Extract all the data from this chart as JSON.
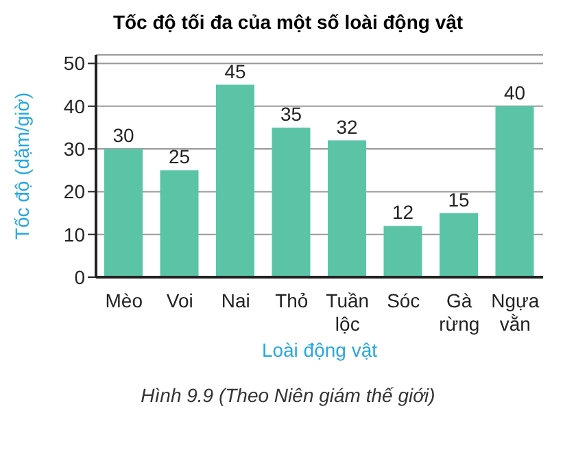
{
  "chart_data": {
    "type": "bar",
    "title": "Tốc độ tối đa của một số loài động vật",
    "xlabel": "Loài động vật",
    "ylabel": "Tốc độ (dặm/giờ)",
    "categories": [
      "Mèo",
      "Voi",
      "Nai",
      "Thỏ",
      "Tuần lộc",
      "Sóc",
      "Gà rừng",
      "Ngựa vằn"
    ],
    "values": [
      30,
      25,
      45,
      35,
      32,
      12,
      15,
      40
    ],
    "color": "#5cc4a6",
    "data_labels": true,
    "ylim": [
      0,
      52
    ],
    "yticks": [
      0,
      10,
      20,
      30,
      40,
      50
    ],
    "grid": "y",
    "annotations": [
      "Hình 9.9 (Theo Niên giám thế giới)"
    ]
  }
}
